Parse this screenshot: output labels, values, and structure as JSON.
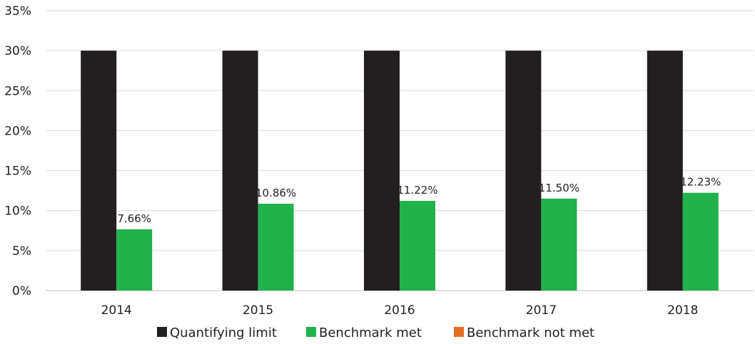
{
  "chart_data": {
    "type": "bar",
    "categories": [
      "2014",
      "2015",
      "2016",
      "2017",
      "2018"
    ],
    "series": [
      {
        "name": "Quantifying limit",
        "color": "#231f20",
        "values": [
          30,
          30,
          30,
          30,
          30
        ]
      },
      {
        "name": "Benchmark met",
        "color": "#21b24b",
        "values": [
          7.66,
          10.86,
          11.22,
          11.5,
          12.23
        ],
        "labels": [
          "7.66%",
          "10.86%",
          "11.22%",
          "11.50%",
          "12.23%"
        ]
      },
      {
        "name": "Benchmark not met",
        "color": "#e46c25",
        "values": [
          0,
          0,
          0,
          0,
          0
        ]
      }
    ],
    "ylim": [
      0,
      35
    ],
    "yticks": [
      "0%",
      "5%",
      "10%",
      "15%",
      "20%",
      "25%",
      "30%",
      "35%"
    ],
    "grid": true,
    "legend_position": "bottom"
  }
}
